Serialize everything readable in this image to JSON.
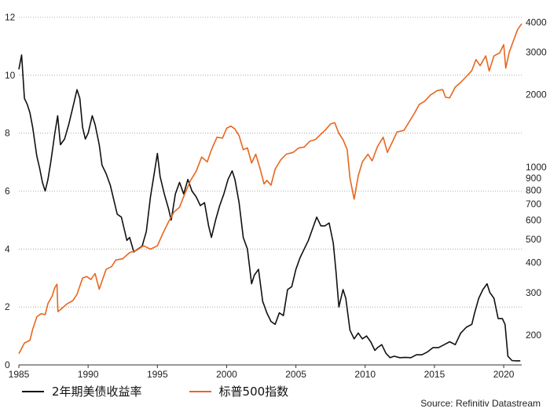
{
  "chart_data": {
    "type": "line",
    "x_ticks": [
      "1985",
      "1990",
      "1995",
      "2000",
      "2005",
      "2010",
      "2015",
      "2020"
    ],
    "y_left": {
      "ticks": [
        0,
        2,
        4,
        6,
        8,
        10,
        12
      ],
      "range": [
        0,
        12
      ]
    },
    "y_right": {
      "scale": "log",
      "ticks": [
        200,
        300,
        400,
        500,
        600,
        700,
        800,
        900,
        1000,
        2000,
        3000,
        4000
      ],
      "range": [
        150,
        4200
      ]
    },
    "grid": "horizontal dotted",
    "legend_placement": "bottom-left",
    "series": [
      {
        "name": "2年期美债收益率",
        "color": "#111111",
        "axis": "left",
        "points": [
          [
            1985.0,
            10.2
          ],
          [
            1985.2,
            10.7
          ],
          [
            1985.4,
            9.2
          ],
          [
            1985.6,
            9.0
          ],
          [
            1985.8,
            8.7
          ],
          [
            1986.0,
            8.2
          ],
          [
            1986.3,
            7.2
          ],
          [
            1986.5,
            6.8
          ],
          [
            1986.7,
            6.3
          ],
          [
            1986.9,
            6.0
          ],
          [
            1987.1,
            6.4
          ],
          [
            1987.3,
            7.0
          ],
          [
            1987.6,
            8.0
          ],
          [
            1987.8,
            8.6
          ],
          [
            1988.0,
            7.6
          ],
          [
            1988.3,
            7.8
          ],
          [
            1988.6,
            8.3
          ],
          [
            1988.9,
            8.9
          ],
          [
            1989.2,
            9.5
          ],
          [
            1989.4,
            9.2
          ],
          [
            1989.6,
            8.2
          ],
          [
            1989.8,
            7.8
          ],
          [
            1990.0,
            8.0
          ],
          [
            1990.3,
            8.6
          ],
          [
            1990.5,
            8.3
          ],
          [
            1990.8,
            7.6
          ],
          [
            1991.0,
            6.9
          ],
          [
            1991.3,
            6.6
          ],
          [
            1991.6,
            6.2
          ],
          [
            1991.9,
            5.6
          ],
          [
            1992.1,
            5.2
          ],
          [
            1992.4,
            5.1
          ],
          [
            1992.6,
            4.7
          ],
          [
            1992.8,
            4.3
          ],
          [
            1993.0,
            4.4
          ],
          [
            1993.3,
            3.9
          ],
          [
            1993.6,
            4.0
          ],
          [
            1993.9,
            4.1
          ],
          [
            1994.2,
            4.6
          ],
          [
            1994.5,
            5.8
          ],
          [
            1994.8,
            6.7
          ],
          [
            1995.0,
            7.3
          ],
          [
            1995.2,
            6.5
          ],
          [
            1995.5,
            5.9
          ],
          [
            1995.8,
            5.4
          ],
          [
            1996.0,
            5.0
          ],
          [
            1996.3,
            5.9
          ],
          [
            1996.6,
            6.3
          ],
          [
            1996.9,
            5.9
          ],
          [
            1997.2,
            6.4
          ],
          [
            1997.5,
            6.0
          ],
          [
            1997.8,
            5.8
          ],
          [
            1998.1,
            5.5
          ],
          [
            1998.4,
            5.6
          ],
          [
            1998.7,
            4.8
          ],
          [
            1998.9,
            4.4
          ],
          [
            1999.2,
            5.0
          ],
          [
            1999.5,
            5.5
          ],
          [
            1999.8,
            5.9
          ],
          [
            2000.1,
            6.4
          ],
          [
            2000.4,
            6.7
          ],
          [
            2000.6,
            6.4
          ],
          [
            2000.9,
            5.6
          ],
          [
            2001.2,
            4.4
          ],
          [
            2001.5,
            4.0
          ],
          [
            2001.8,
            2.8
          ],
          [
            2002.0,
            3.1
          ],
          [
            2002.3,
            3.3
          ],
          [
            2002.6,
            2.2
          ],
          [
            2002.9,
            1.8
          ],
          [
            2003.2,
            1.5
          ],
          [
            2003.5,
            1.4
          ],
          [
            2003.8,
            1.8
          ],
          [
            2004.1,
            1.7
          ],
          [
            2004.4,
            2.6
          ],
          [
            2004.7,
            2.7
          ],
          [
            2005.0,
            3.3
          ],
          [
            2005.3,
            3.7
          ],
          [
            2005.6,
            4.0
          ],
          [
            2005.9,
            4.3
          ],
          [
            2006.2,
            4.7
          ],
          [
            2006.5,
            5.1
          ],
          [
            2006.8,
            4.8
          ],
          [
            2007.1,
            4.8
          ],
          [
            2007.4,
            4.9
          ],
          [
            2007.7,
            4.2
          ],
          [
            2007.9,
            3.2
          ],
          [
            2008.1,
            2.0
          ],
          [
            2008.4,
            2.6
          ],
          [
            2008.6,
            2.3
          ],
          [
            2008.9,
            1.2
          ],
          [
            2009.2,
            0.9
          ],
          [
            2009.5,
            1.1
          ],
          [
            2009.8,
            0.9
          ],
          [
            2010.1,
            1.0
          ],
          [
            2010.4,
            0.8
          ],
          [
            2010.7,
            0.5
          ],
          [
            2010.9,
            0.6
          ],
          [
            2011.2,
            0.7
          ],
          [
            2011.5,
            0.4
          ],
          [
            2011.8,
            0.25
          ],
          [
            2012.1,
            0.3
          ],
          [
            2012.5,
            0.25
          ],
          [
            2012.9,
            0.26
          ],
          [
            2013.3,
            0.25
          ],
          [
            2013.7,
            0.35
          ],
          [
            2014.1,
            0.35
          ],
          [
            2014.5,
            0.45
          ],
          [
            2014.9,
            0.6
          ],
          [
            2015.3,
            0.6
          ],
          [
            2015.7,
            0.7
          ],
          [
            2016.1,
            0.8
          ],
          [
            2016.5,
            0.7
          ],
          [
            2016.9,
            1.1
          ],
          [
            2017.3,
            1.3
          ],
          [
            2017.7,
            1.4
          ],
          [
            2017.9,
            1.8
          ],
          [
            2018.2,
            2.3
          ],
          [
            2018.5,
            2.6
          ],
          [
            2018.8,
            2.8
          ],
          [
            2019.0,
            2.5
          ],
          [
            2019.3,
            2.3
          ],
          [
            2019.6,
            1.6
          ],
          [
            2019.9,
            1.6
          ],
          [
            2020.1,
            1.4
          ],
          [
            2020.3,
            0.3
          ],
          [
            2020.6,
            0.15
          ],
          [
            2020.9,
            0.14
          ],
          [
            2021.2,
            0.14
          ]
        ]
      },
      {
        "name": "标普500指数",
        "color": "#e8661e",
        "axis": "right",
        "points": [
          [
            1985.0,
            167
          ],
          [
            1985.4,
            185
          ],
          [
            1985.8,
            190
          ],
          [
            1986.0,
            211
          ],
          [
            1986.3,
            238
          ],
          [
            1986.6,
            245
          ],
          [
            1986.9,
            243
          ],
          [
            1987.1,
            270
          ],
          [
            1987.4,
            290
          ],
          [
            1987.6,
            315
          ],
          [
            1987.75,
            325
          ],
          [
            1987.82,
            250
          ],
          [
            1988.0,
            255
          ],
          [
            1988.5,
            270
          ],
          [
            1988.9,
            278
          ],
          [
            1989.2,
            295
          ],
          [
            1989.6,
            345
          ],
          [
            1989.9,
            350
          ],
          [
            1990.2,
            340
          ],
          [
            1990.5,
            360
          ],
          [
            1990.8,
            310
          ],
          [
            1991.0,
            335
          ],
          [
            1991.3,
            375
          ],
          [
            1991.7,
            385
          ],
          [
            1992.0,
            410
          ],
          [
            1992.5,
            415
          ],
          [
            1993.0,
            440
          ],
          [
            1993.5,
            450
          ],
          [
            1994.0,
            470
          ],
          [
            1994.5,
            455
          ],
          [
            1995.0,
            470
          ],
          [
            1995.4,
            530
          ],
          [
            1995.8,
            590
          ],
          [
            1996.2,
            650
          ],
          [
            1996.6,
            680
          ],
          [
            1997.0,
            780
          ],
          [
            1997.4,
            880
          ],
          [
            1997.8,
            960
          ],
          [
            1998.2,
            1100
          ],
          [
            1998.6,
            1050
          ],
          [
            1998.9,
            1180
          ],
          [
            1999.3,
            1330
          ],
          [
            1999.7,
            1320
          ],
          [
            2000.0,
            1450
          ],
          [
            2000.3,
            1480
          ],
          [
            2000.6,
            1440
          ],
          [
            2000.9,
            1350
          ],
          [
            2001.2,
            1180
          ],
          [
            2001.5,
            1200
          ],
          [
            2001.8,
            1040
          ],
          [
            2002.1,
            1130
          ],
          [
            2002.4,
            990
          ],
          [
            2002.7,
            850
          ],
          [
            2002.9,
            880
          ],
          [
            2003.2,
            840
          ],
          [
            2003.5,
            980
          ],
          [
            2003.9,
            1070
          ],
          [
            2004.3,
            1130
          ],
          [
            2004.8,
            1150
          ],
          [
            2005.2,
            1200
          ],
          [
            2005.6,
            1210
          ],
          [
            2006.0,
            1280
          ],
          [
            2006.4,
            1300
          ],
          [
            2006.8,
            1370
          ],
          [
            2007.1,
            1420
          ],
          [
            2007.5,
            1510
          ],
          [
            2007.8,
            1530
          ],
          [
            2008.1,
            1380
          ],
          [
            2008.4,
            1300
          ],
          [
            2008.7,
            1180
          ],
          [
            2008.9,
            900
          ],
          [
            2009.2,
            735
          ],
          [
            2009.5,
            920
          ],
          [
            2009.8,
            1050
          ],
          [
            2010.2,
            1130
          ],
          [
            2010.5,
            1060
          ],
          [
            2010.9,
            1220
          ],
          [
            2011.3,
            1330
          ],
          [
            2011.6,
            1150
          ],
          [
            2011.9,
            1250
          ],
          [
            2012.3,
            1400
          ],
          [
            2012.8,
            1420
          ],
          [
            2013.2,
            1550
          ],
          [
            2013.6,
            1690
          ],
          [
            2013.9,
            1820
          ],
          [
            2014.3,
            1880
          ],
          [
            2014.7,
            1990
          ],
          [
            2015.2,
            2080
          ],
          [
            2015.6,
            2100
          ],
          [
            2015.8,
            1950
          ],
          [
            2016.1,
            1940
          ],
          [
            2016.5,
            2150
          ],
          [
            2016.9,
            2250
          ],
          [
            2017.3,
            2380
          ],
          [
            2017.7,
            2520
          ],
          [
            2018.0,
            2800
          ],
          [
            2018.3,
            2640
          ],
          [
            2018.7,
            2900
          ],
          [
            2018.95,
            2510
          ],
          [
            2019.3,
            2900
          ],
          [
            2019.7,
            2980
          ],
          [
            2020.0,
            3230
          ],
          [
            2020.15,
            2580
          ],
          [
            2020.4,
            3000
          ],
          [
            2020.7,
            3350
          ],
          [
            2021.0,
            3730
          ],
          [
            2021.3,
            3950
          ]
        ]
      }
    ]
  },
  "legend": {
    "yield_label": "2年期美债收益率",
    "sp_label": "标普500指数"
  },
  "source_label": "Source: Refinitiv Datastream"
}
